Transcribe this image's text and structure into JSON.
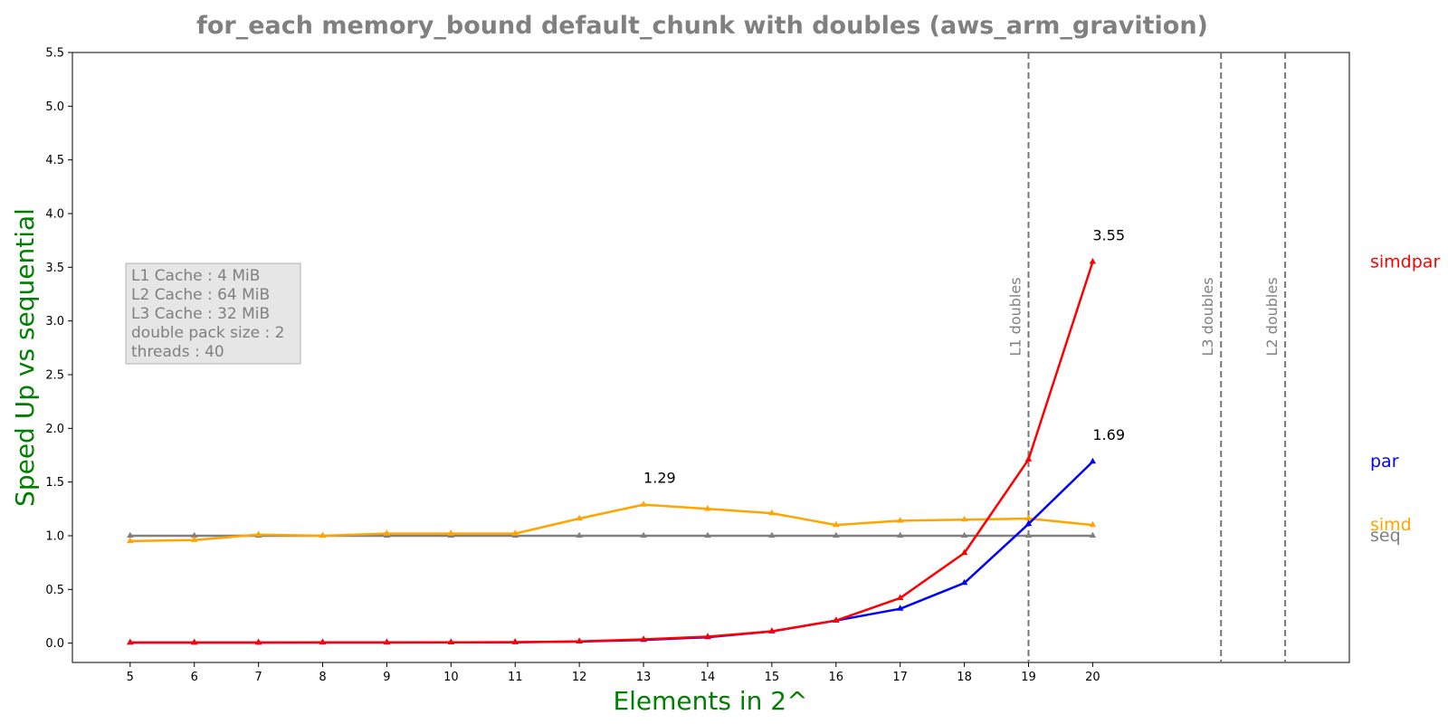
{
  "chart_data": {
    "type": "line",
    "title": "for_each memory_bound default_chunk with doubles  (aws_arm_gravition)",
    "xlabel": "Elements in 2^",
    "ylabel": "Speed Up vs sequential",
    "x": [
      5,
      6,
      7,
      8,
      9,
      10,
      11,
      12,
      13,
      14,
      15,
      16,
      17,
      18,
      19,
      20
    ],
    "xlim": [
      4.1,
      24
    ],
    "ylim": [
      -0.18,
      5.5
    ],
    "yticks": [
      "0.0",
      "0.5",
      "1.0",
      "1.5",
      "2.0",
      "2.5",
      "3.0",
      "3.5",
      "4.0",
      "4.5",
      "5.0",
      "5.5"
    ],
    "xtick_labels": [
      "5",
      "6",
      "7",
      "8",
      "9",
      "10",
      "11",
      "12",
      "13",
      "14",
      "15",
      "16",
      "17",
      "18",
      "19",
      "20"
    ],
    "series": [
      {
        "name": "seq",
        "color": "#808080",
        "values": [
          1.0,
          1.0,
          1.0,
          1.0,
          1.0,
          1.0,
          1.0,
          1.0,
          1.0,
          1.0,
          1.0,
          1.0,
          1.0,
          1.0,
          1.0,
          1.0
        ]
      },
      {
        "name": "simd",
        "color": "#FFA500",
        "values": [
          0.95,
          0.96,
          1.01,
          1.0,
          1.02,
          1.02,
          1.02,
          1.16,
          1.29,
          1.25,
          1.21,
          1.1,
          1.14,
          1.15,
          1.16,
          1.1
        ]
      },
      {
        "name": "par",
        "color": "#0000FF",
        "values": [
          0.005,
          0.005,
          0.005,
          0.006,
          0.006,
          0.007,
          0.009,
          0.015,
          0.03,
          0.055,
          0.11,
          0.21,
          0.32,
          0.56,
          1.11,
          1.69
        ]
      },
      {
        "name": "simdpar",
        "color": "#FF0000",
        "values": [
          0.005,
          0.005,
          0.005,
          0.006,
          0.006,
          0.007,
          0.009,
          0.016,
          0.035,
          0.06,
          0.11,
          0.21,
          0.42,
          0.84,
          1.71,
          3.55
        ]
      }
    ],
    "annotations": [
      {
        "text": "1.29",
        "x": 13,
        "y": 1.29
      },
      {
        "text": "3.55",
        "x": 20,
        "y": 3.55
      },
      {
        "text": "1.69",
        "x": 20,
        "y": 1.69
      }
    ],
    "vlines": [
      {
        "label": "L1 doubles",
        "x": 19
      },
      {
        "label": "L3 doubles",
        "x": 22
      },
      {
        "label": "L2 doubles",
        "x": 23
      }
    ],
    "info_box": [
      "L1 Cache : 4 MiB",
      "L2 Cache : 64 MiB",
      "L3 Cache : 32 MiB",
      "double pack size : 2",
      "threads : 40"
    ],
    "legend": "labels at right end of each series",
    "grid": false
  }
}
